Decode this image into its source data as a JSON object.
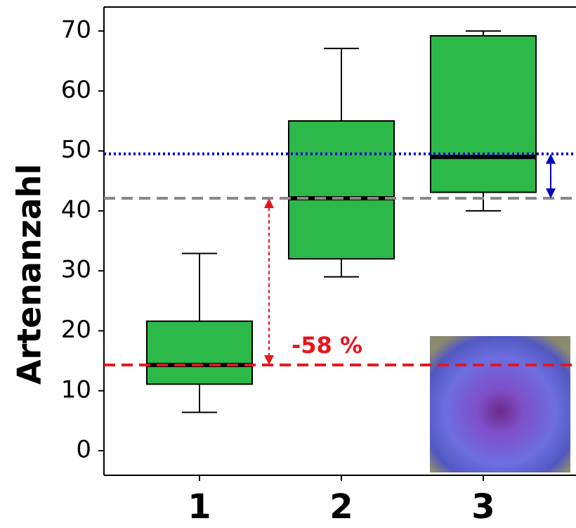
{
  "chart_data": {
    "type": "box",
    "y_label": "Artenanzahl",
    "categories": [
      "1",
      "2",
      "3"
    ],
    "boxes": [
      {
        "min": 6.4,
        "q1": 11.1,
        "median": 14.3,
        "q3": 21.6,
        "max": 32.9
      },
      {
        "min": 29.0,
        "q1": 32.0,
        "median": 42.1,
        "q3": 55.0,
        "max": 67.1
      },
      {
        "min": 40.0,
        "q1": 43.1,
        "median": 49.0,
        "q3": 69.2,
        "max": 70.0
      }
    ],
    "color": "#2db84a",
    "ylim": [
      -4.1,
      74
    ],
    "yticks": [
      0,
      10,
      20,
      30,
      40,
      50,
      60,
      70
    ],
    "reference_lines": [
      {
        "value": 49.5,
        "color": "#0000cc",
        "style": "dotted"
      },
      {
        "value": 42.1,
        "color": "#888888",
        "style": "dashed"
      },
      {
        "value": 14.3,
        "color": "#e8141b",
        "style": "dashed"
      }
    ],
    "annotation": "-58 %"
  }
}
